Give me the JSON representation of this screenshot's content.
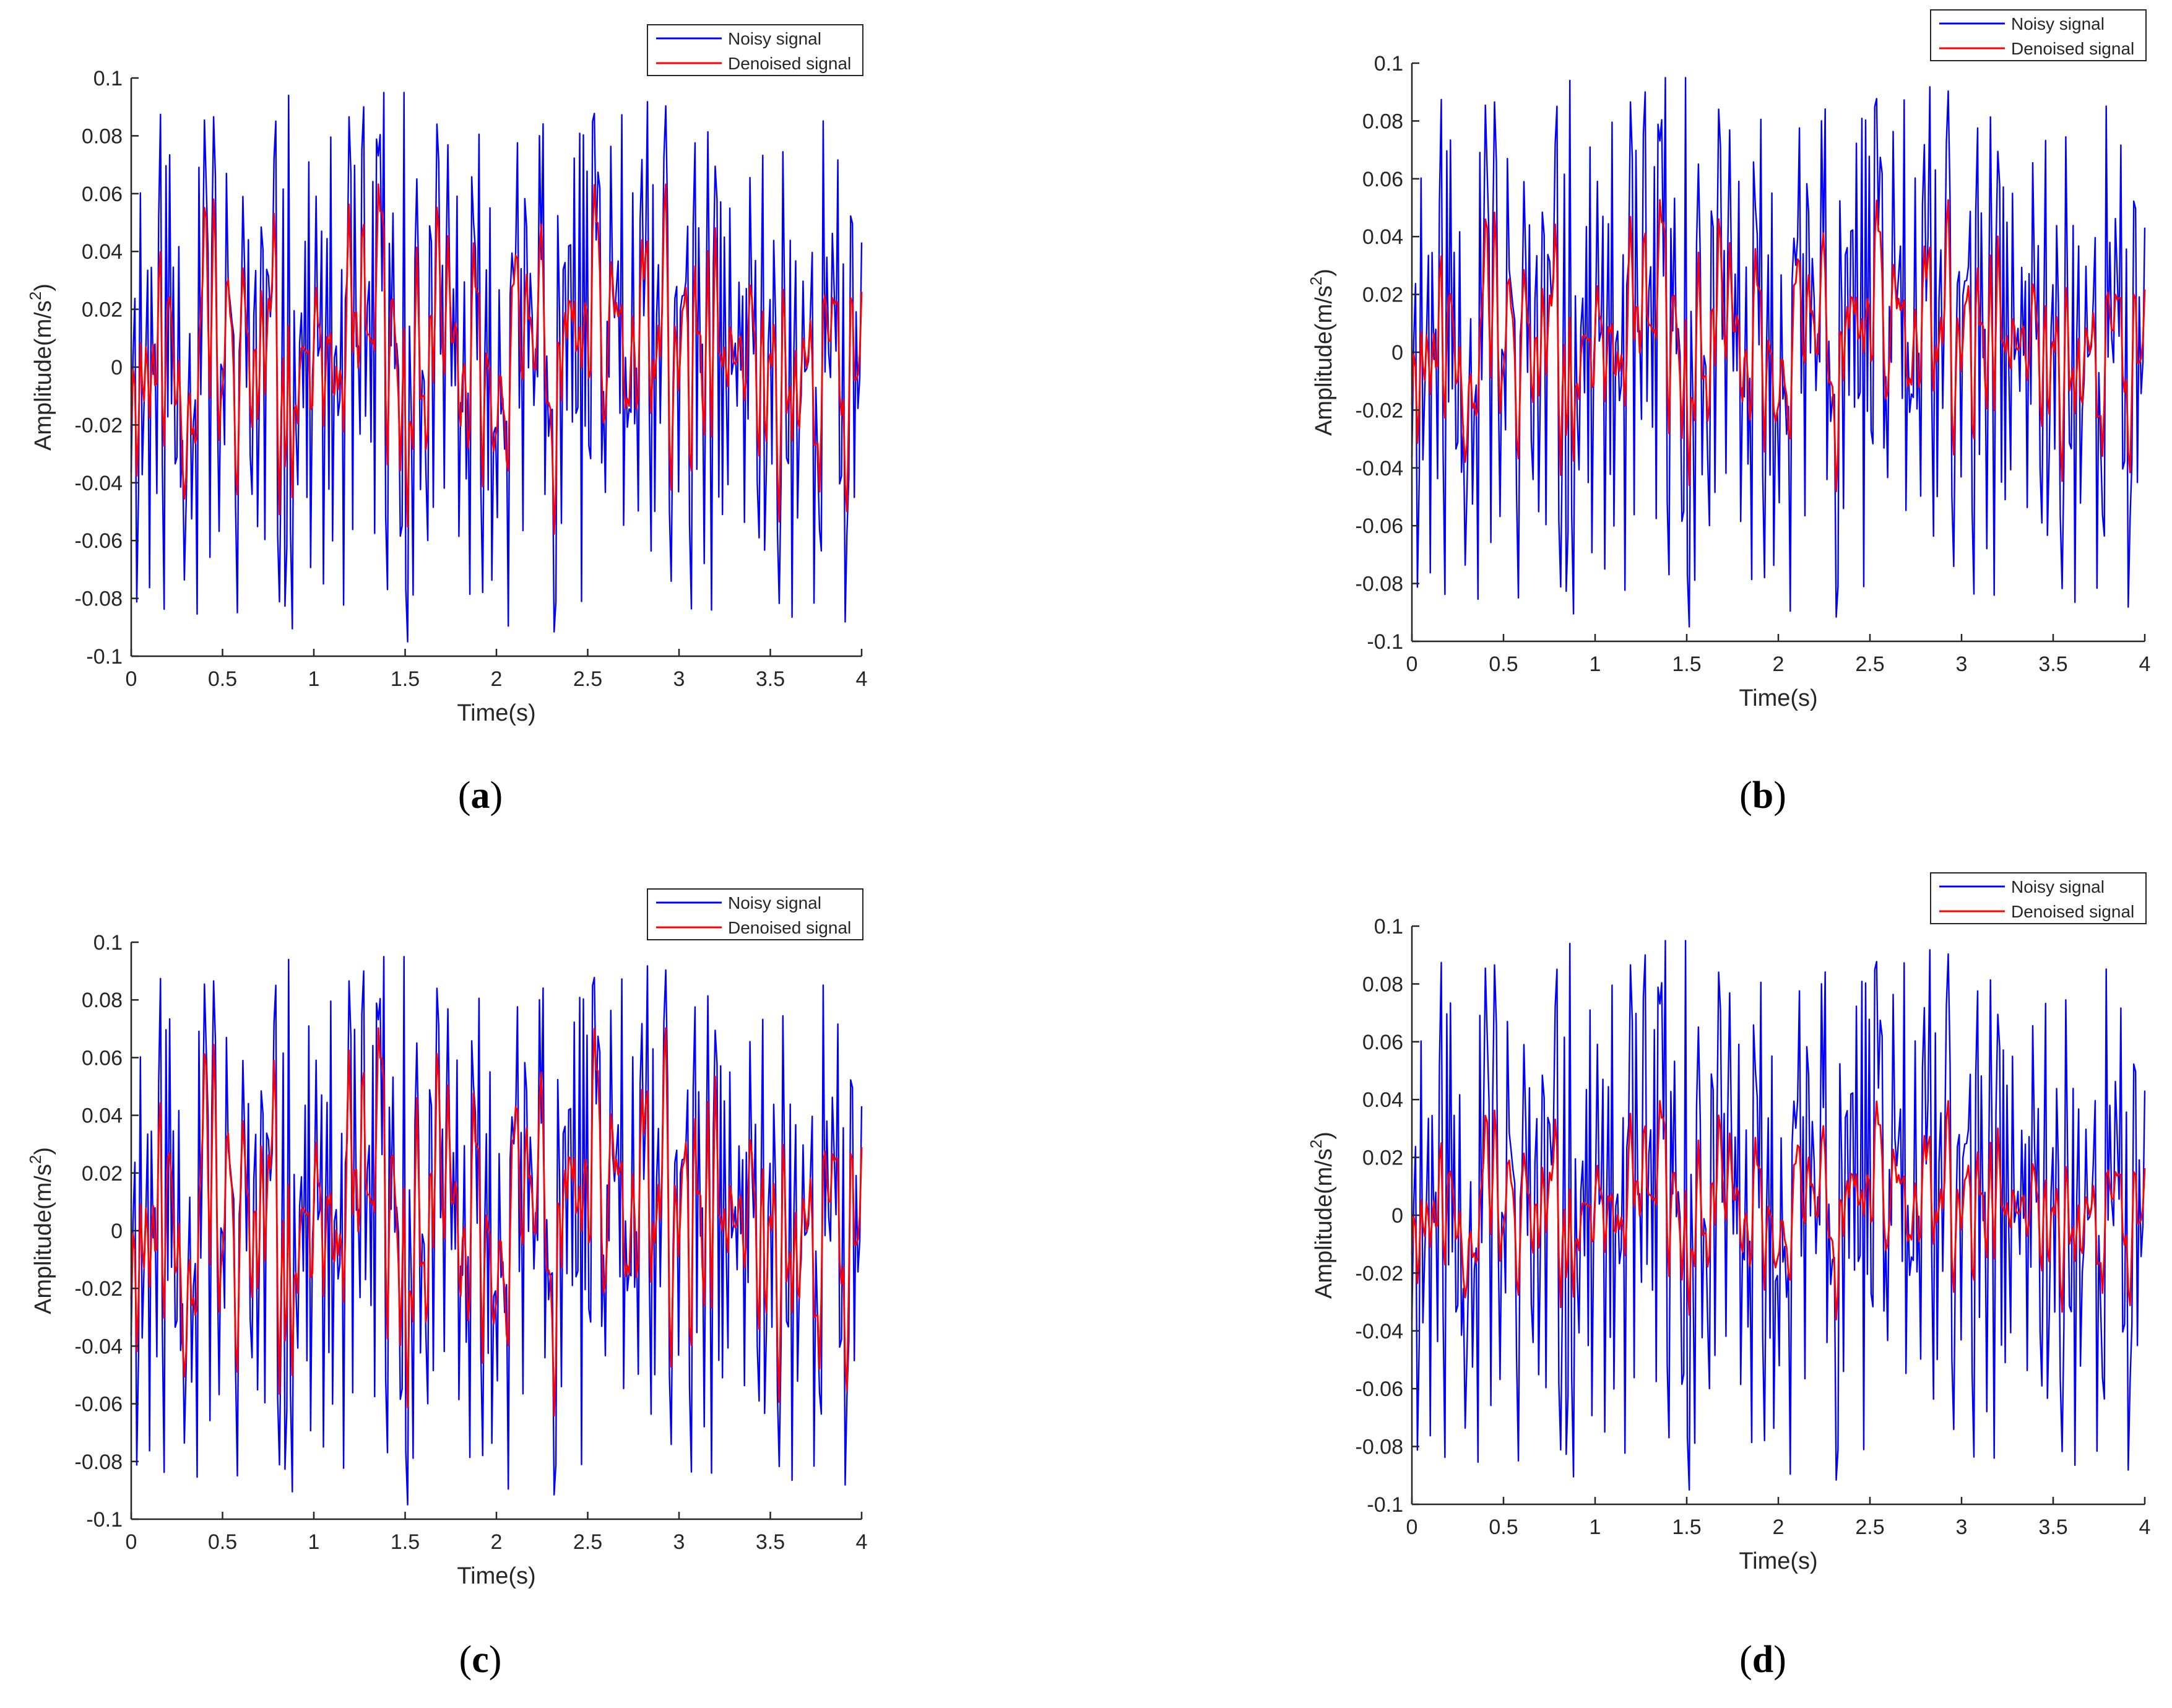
{
  "colors": {
    "noisy": "#0000ff",
    "denoised": "#ff0000",
    "axis": "#262626",
    "legend_border": "#262626"
  },
  "chart_data": [
    {
      "id": "a",
      "caption": "a",
      "type": "line",
      "xlabel": "Time(s)",
      "ylabel_base": "Amplitude(m/s",
      "ylabel_exp": "2",
      "ylabel_close": ")",
      "xlim": [
        0,
        4
      ],
      "ylim": [
        -0.1,
        0.1
      ],
      "xticks": [
        0,
        0.5,
        1,
        1.5,
        2,
        2.5,
        3,
        3.5,
        4
      ],
      "xtick_labels": [
        "0",
        "0.5",
        "1",
        "1.5",
        "2",
        "2.5",
        "3",
        "3.5",
        "4"
      ],
      "yticks": [
        -0.1,
        -0.08,
        -0.06,
        -0.04,
        -0.02,
        0,
        0.02,
        0.04,
        0.06,
        0.08,
        0.1
      ],
      "ytick_labels": [
        "-0.1",
        "-0.08",
        "-0.06",
        "-0.04",
        "-0.02",
        "0",
        "0.02",
        "0.04",
        "0.06",
        "0.08",
        "0.1"
      ],
      "legend_position": "top-right",
      "grid": false,
      "series": [
        {
          "name": "Noisy signal",
          "color": "#0000ff",
          "seed": 11,
          "scale": 1.0,
          "samples": 400
        },
        {
          "name": "Denoised signal",
          "color": "#ff0000",
          "seed": 11,
          "scale": 0.72,
          "samples": 400
        }
      ]
    },
    {
      "id": "b",
      "caption": "b",
      "type": "line",
      "xlabel": "Time(s)",
      "ylabel_base": "Amplitude(m/s",
      "ylabel_exp": "2",
      "ylabel_close": ")",
      "xlim": [
        0,
        4
      ],
      "ylim": [
        -0.1,
        0.1
      ],
      "xticks": [
        0,
        0.5,
        1,
        1.5,
        2,
        2.5,
        3,
        3.5,
        4
      ],
      "xtick_labels": [
        "0",
        "0.5",
        "1",
        "1.5",
        "2",
        "2.5",
        "3",
        "3.5",
        "4"
      ],
      "yticks": [
        -0.1,
        -0.08,
        -0.06,
        -0.04,
        -0.02,
        0,
        0.02,
        0.04,
        0.06,
        0.08,
        0.1
      ],
      "ytick_labels": [
        "-0.1",
        "-0.08",
        "-0.06",
        "-0.04",
        "-0.02",
        "0",
        "0.02",
        "0.04",
        "0.06",
        "0.08",
        "0.1"
      ],
      "legend_position": "top-right",
      "grid": false,
      "series": [
        {
          "name": "Noisy signal",
          "color": "#0000ff",
          "seed": 11,
          "scale": 1.0,
          "samples": 400
        },
        {
          "name": "Denoised signal",
          "color": "#ff0000",
          "seed": 11,
          "scale": 0.6,
          "samples": 400
        }
      ]
    },
    {
      "id": "c",
      "caption": "c",
      "type": "line",
      "xlabel": "Time(s)",
      "ylabel_base": "Amplitude(m/s",
      "ylabel_exp": "2",
      "ylabel_close": ")",
      "xlim": [
        0,
        4
      ],
      "ylim": [
        -0.1,
        0.1
      ],
      "xticks": [
        0,
        0.5,
        1,
        1.5,
        2,
        2.5,
        3,
        3.5,
        4
      ],
      "xtick_labels": [
        "0",
        "0.5",
        "1",
        "1.5",
        "2",
        "2.5",
        "3",
        "3.5",
        "4"
      ],
      "yticks": [
        -0.1,
        -0.08,
        -0.06,
        -0.04,
        -0.02,
        0,
        0.02,
        0.04,
        0.06,
        0.08,
        0.1
      ],
      "ytick_labels": [
        "-0.1",
        "-0.08",
        "-0.06",
        "-0.04",
        "-0.02",
        "0",
        "0.02",
        "0.04",
        "0.06",
        "0.08",
        "0.1"
      ],
      "legend_position": "top-right",
      "grid": false,
      "series": [
        {
          "name": "Noisy signal",
          "color": "#0000ff",
          "seed": 11,
          "scale": 1.0,
          "samples": 400
        },
        {
          "name": "Denoised signal",
          "color": "#ff0000",
          "seed": 11,
          "scale": 0.8,
          "samples": 400
        }
      ]
    },
    {
      "id": "d",
      "caption": "d",
      "type": "line",
      "xlabel": "Time(s)",
      "ylabel_base": "Amplitude(m/s",
      "ylabel_exp": "2",
      "ylabel_close": ")",
      "xlim": [
        0,
        4
      ],
      "ylim": [
        -0.1,
        0.1
      ],
      "xticks": [
        0,
        0.5,
        1,
        1.5,
        2,
        2.5,
        3,
        3.5,
        4
      ],
      "xtick_labels": [
        "0",
        "0.5",
        "1",
        "1.5",
        "2",
        "2.5",
        "3",
        "3.5",
        "4"
      ],
      "yticks": [
        -0.1,
        -0.08,
        -0.06,
        -0.04,
        -0.02,
        0,
        0.02,
        0.04,
        0.06,
        0.08,
        0.1
      ],
      "ytick_labels": [
        "-0.1",
        "-0.08",
        "-0.06",
        "-0.04",
        "-0.02",
        "0",
        "0.02",
        "0.04",
        "0.06",
        "0.08",
        "0.1"
      ],
      "legend_position": "top-right",
      "grid": false,
      "series": [
        {
          "name": "Noisy signal",
          "color": "#0000ff",
          "seed": 11,
          "scale": 1.0,
          "samples": 400
        },
        {
          "name": "Denoised signal",
          "color": "#ff0000",
          "seed": 11,
          "scale": 0.45,
          "samples": 400
        }
      ]
    }
  ]
}
